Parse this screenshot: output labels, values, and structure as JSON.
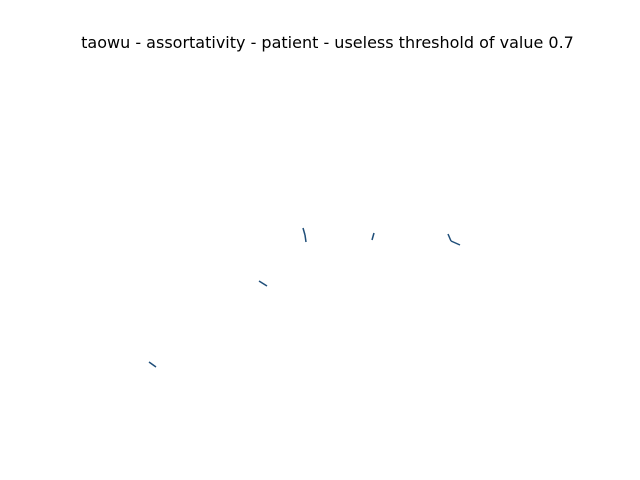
{
  "figure": {
    "title": "taowu - assortativity - patient - useless threshold of value 0.7",
    "edge_color": "#1f4e79",
    "background_color": "#ffffff"
  }
}
